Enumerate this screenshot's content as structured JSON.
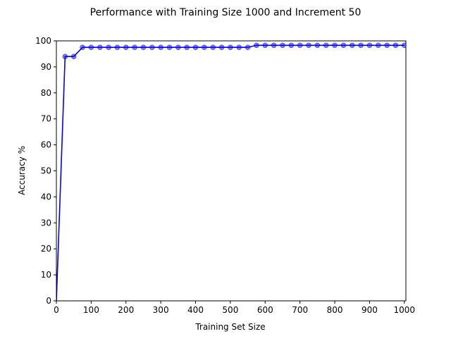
{
  "chart_data": {
    "type": "line",
    "title": "Performance with Training Size 1000 and Increment 50",
    "xlabel": "Training Set Size",
    "ylabel": "Accuracy %",
    "xlim": [
      0,
      1000
    ],
    "ylim": [
      0,
      100
    ],
    "xticks": [
      0,
      100,
      200,
      300,
      400,
      500,
      600,
      700,
      800,
      900,
      1000
    ],
    "yticks": [
      0,
      10,
      20,
      30,
      40,
      50,
      60,
      70,
      80,
      90,
      100
    ],
    "grid": false,
    "line_color": "#0000ff",
    "marker_color": "#0000ff",
    "series": [
      {
        "x": [
          0,
          25,
          50,
          75,
          100,
          125,
          150,
          175,
          200,
          225,
          250,
          275,
          300,
          325,
          350,
          375,
          400,
          425,
          450,
          475,
          500,
          525,
          550,
          575,
          600,
          625,
          650,
          675,
          700,
          725,
          750,
          775,
          800,
          825,
          850,
          875,
          900,
          925,
          950,
          975,
          1000
        ],
        "y": [
          0,
          94,
          94,
          97.5,
          97.5,
          97.5,
          97.5,
          97.5,
          97.5,
          97.5,
          97.5,
          97.5,
          97.5,
          97.5,
          97.5,
          97.5,
          97.5,
          97.5,
          97.5,
          97.5,
          97.5,
          97.5,
          97.5,
          98.3,
          98.3,
          98.3,
          98.3,
          98.3,
          98.3,
          98.3,
          98.3,
          98.3,
          98.3,
          98.3,
          98.3,
          98.3,
          98.3,
          98.3,
          98.3,
          98.3,
          98.3
        ],
        "markers_from_index": 1
      }
    ]
  }
}
